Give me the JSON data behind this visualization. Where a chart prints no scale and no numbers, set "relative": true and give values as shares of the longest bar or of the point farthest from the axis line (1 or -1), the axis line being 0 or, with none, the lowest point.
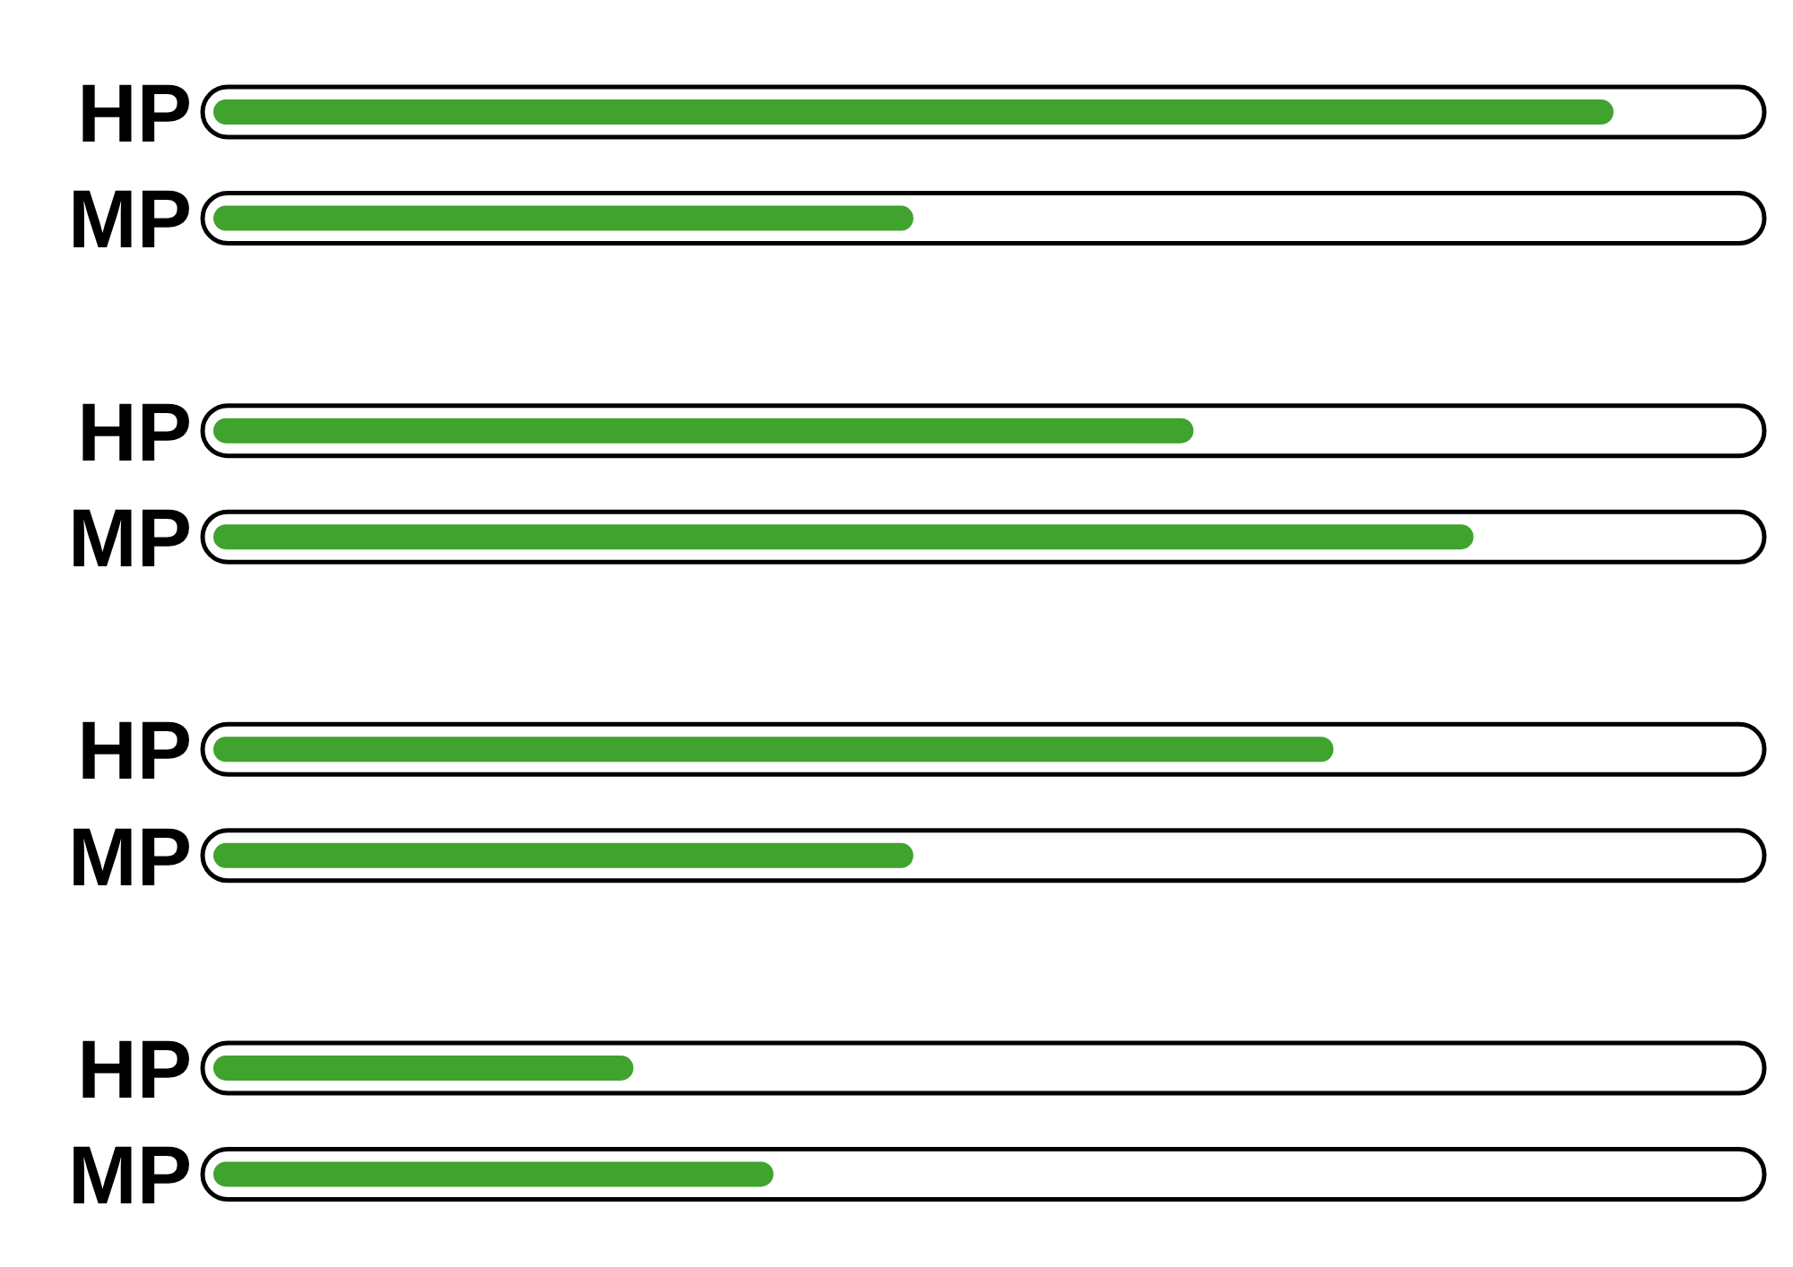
{
  "chart_data": {
    "type": "bar",
    "orientation": "horizontal",
    "relative": true,
    "categories": [
      "HP",
      "MP",
      null,
      "HP",
      "MP",
      null,
      "HP",
      "MP",
      null,
      "HP",
      "MP"
    ],
    "values": [
      1,
      0.5,
      null,
      0.7,
      0.9,
      null,
      0.8,
      0.5,
      null,
      0.3,
      0.4
    ],
    "color": "#3fa32d"
  }
}
